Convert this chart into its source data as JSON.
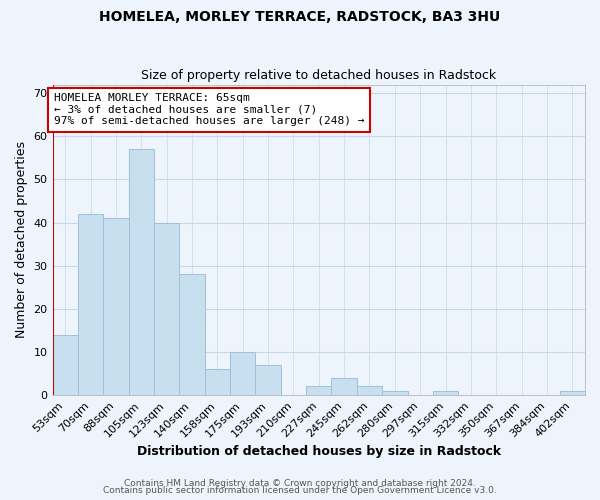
{
  "title": "HOMELEA, MORLEY TERRACE, RADSTOCK, BA3 3HU",
  "subtitle": "Size of property relative to detached houses in Radstock",
  "xlabel": "Distribution of detached houses by size in Radstock",
  "ylabel": "Number of detached properties",
  "bar_color": "#c8dff0",
  "bar_edge_color": "#a0c0d8",
  "bin_labels": [
    "53sqm",
    "70sqm",
    "88sqm",
    "105sqm",
    "123sqm",
    "140sqm",
    "158sqm",
    "175sqm",
    "193sqm",
    "210sqm",
    "227sqm",
    "245sqm",
    "262sqm",
    "280sqm",
    "297sqm",
    "315sqm",
    "332sqm",
    "350sqm",
    "367sqm",
    "384sqm",
    "402sqm"
  ],
  "bar_heights": [
    14,
    42,
    41,
    57,
    40,
    28,
    6,
    10,
    7,
    0,
    2,
    4,
    2,
    1,
    0,
    1,
    0,
    0,
    0,
    0,
    1
  ],
  "marker_color": "#cc0000",
  "ylim": [
    0,
    72
  ],
  "yticks": [
    0,
    10,
    20,
    30,
    40,
    50,
    60,
    70
  ],
  "annotation_title": "HOMELEA MORLEY TERRACE: 65sqm",
  "annotation_line1": "← 3% of detached houses are smaller (7)",
  "annotation_line2": "97% of semi-detached houses are larger (248) →",
  "footer_line1": "Contains HM Land Registry data © Crown copyright and database right 2024.",
  "footer_line2": "Contains public sector information licensed under the Open Government Licence v3.0.",
  "background_color": "#eef4fb",
  "plot_bg_color": "#eef4fb",
  "grid_color": "#c8d8e8",
  "title_fontsize": 10,
  "subtitle_fontsize": 9,
  "ylabel_fontsize": 9,
  "xlabel_fontsize": 9,
  "tick_fontsize": 8,
  "annotation_fontsize": 8,
  "footer_fontsize": 6.5
}
